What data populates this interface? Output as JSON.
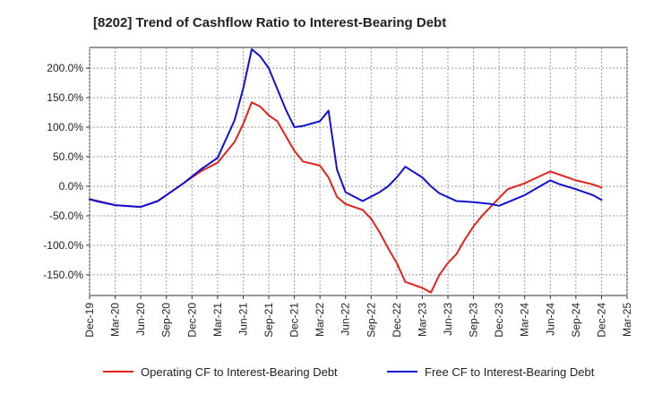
{
  "chart_data": {
    "type": "line",
    "title": "[8202]  Trend of Cashflow Ratio to Interest-Bearing Debt",
    "xlabel": "",
    "ylabel": "",
    "x_ticks": [
      "Dec-19",
      "Mar-20",
      "Jun-20",
      "Sep-20",
      "Dec-20",
      "Mar-21",
      "Jun-21",
      "Sep-21",
      "Dec-21",
      "Mar-22",
      "Jun-22",
      "Sep-22",
      "Dec-22",
      "Mar-23",
      "Jun-23",
      "Sep-23",
      "Dec-23",
      "Mar-24",
      "Jun-24",
      "Sep-24",
      "Dec-24",
      "Mar-25"
    ],
    "y_ticks": [
      200,
      150,
      100,
      50,
      0,
      -50,
      -100,
      -150
    ],
    "y_tick_labels": [
      "200.0%",
      "150.0%",
      "100.0%",
      "50.0%",
      "0.0%",
      "-50.0%",
      "-100.0%",
      "-150.0%"
    ],
    "ylim": [
      -185,
      235
    ],
    "grid": true,
    "legend_position": "bottom",
    "series": [
      {
        "name": "Operating CF to Interest-Bearing Debt",
        "color": "#e8221b",
        "points": [
          [
            "Dec-19",
            -22
          ],
          [
            "Jan-20",
            -25
          ],
          [
            "Mar-20",
            -32
          ],
          [
            "Jun-20",
            -35
          ],
          [
            "Aug-20",
            -25
          ],
          [
            "Sep-20",
            -15
          ],
          [
            "Nov-20",
            5
          ],
          [
            "Jan-21",
            25
          ],
          [
            "Mar-21",
            40
          ],
          [
            "May-21",
            75
          ],
          [
            "Jun-21",
            105
          ],
          [
            "Jul-21",
            142
          ],
          [
            "Aug-21",
            135
          ],
          [
            "Sep-21",
            120
          ],
          [
            "Oct-21",
            110
          ],
          [
            "Nov-21",
            85
          ],
          [
            "Dec-21",
            60
          ],
          [
            "Jan-22",
            42
          ],
          [
            "Mar-22",
            35
          ],
          [
            "Apr-22",
            15
          ],
          [
            "May-22",
            -18
          ],
          [
            "Jun-22",
            -30
          ],
          [
            "Aug-22",
            -40
          ],
          [
            "Sep-22",
            -55
          ],
          [
            "Oct-22",
            -78
          ],
          [
            "Nov-22",
            -105
          ],
          [
            "Dec-22",
            -130
          ],
          [
            "Jan-23",
            -162
          ],
          [
            "Mar-23",
            -172
          ],
          [
            "Apr-23",
            -180
          ],
          [
            "May-23",
            -150
          ],
          [
            "Jun-23",
            -130
          ],
          [
            "Jul-23",
            -115
          ],
          [
            "Aug-23",
            -90
          ],
          [
            "Sep-23",
            -68
          ],
          [
            "Oct-23",
            -50
          ],
          [
            "Nov-23",
            -35
          ],
          [
            "Dec-23",
            -20
          ],
          [
            "Jan-24",
            -5
          ],
          [
            "Mar-24",
            5
          ],
          [
            "Apr-24",
            12
          ],
          [
            "Jun-24",
            25
          ],
          [
            "Aug-24",
            15
          ],
          [
            "Sep-24",
            10
          ],
          [
            "Nov-24",
            3
          ],
          [
            "Dec-24",
            -2
          ]
        ]
      },
      {
        "name": "Free CF to Interest-Bearing Debt",
        "color": "#1010d6",
        "points": [
          [
            "Dec-19",
            -22
          ],
          [
            "Jan-20",
            -26
          ],
          [
            "Mar-20",
            -32
          ],
          [
            "Jun-20",
            -35
          ],
          [
            "Aug-20",
            -25
          ],
          [
            "Sep-20",
            -15
          ],
          [
            "Nov-20",
            5
          ],
          [
            "Jan-21",
            28
          ],
          [
            "Mar-21",
            48
          ],
          [
            "Apr-21",
            80
          ],
          [
            "May-21",
            112
          ],
          [
            "Jun-21",
            165
          ],
          [
            "Jul-21",
            232
          ],
          [
            "Aug-21",
            220
          ],
          [
            "Sep-21",
            200
          ],
          [
            "Oct-21",
            165
          ],
          [
            "Nov-21",
            130
          ],
          [
            "Dec-21",
            100
          ],
          [
            "Jan-22",
            102
          ],
          [
            "Mar-22",
            110
          ],
          [
            "Apr-22",
            128
          ],
          [
            "May-22",
            28
          ],
          [
            "Jun-22",
            -10
          ],
          [
            "Aug-22",
            -25
          ],
          [
            "Oct-22",
            -10
          ],
          [
            "Nov-22",
            0
          ],
          [
            "Dec-22",
            15
          ],
          [
            "Jan-23",
            33
          ],
          [
            "Mar-23",
            15
          ],
          [
            "Apr-23",
            0
          ],
          [
            "May-23",
            -12
          ],
          [
            "Jul-23",
            -25
          ],
          [
            "Sep-23",
            -27
          ],
          [
            "Nov-23",
            -30
          ],
          [
            "Dec-23",
            -33
          ],
          [
            "Mar-24",
            -15
          ],
          [
            "Jun-24",
            10
          ],
          [
            "Jul-24",
            4
          ],
          [
            "Sep-24",
            -5
          ],
          [
            "Nov-24",
            -15
          ],
          [
            "Dec-24",
            -23
          ]
        ]
      }
    ]
  }
}
